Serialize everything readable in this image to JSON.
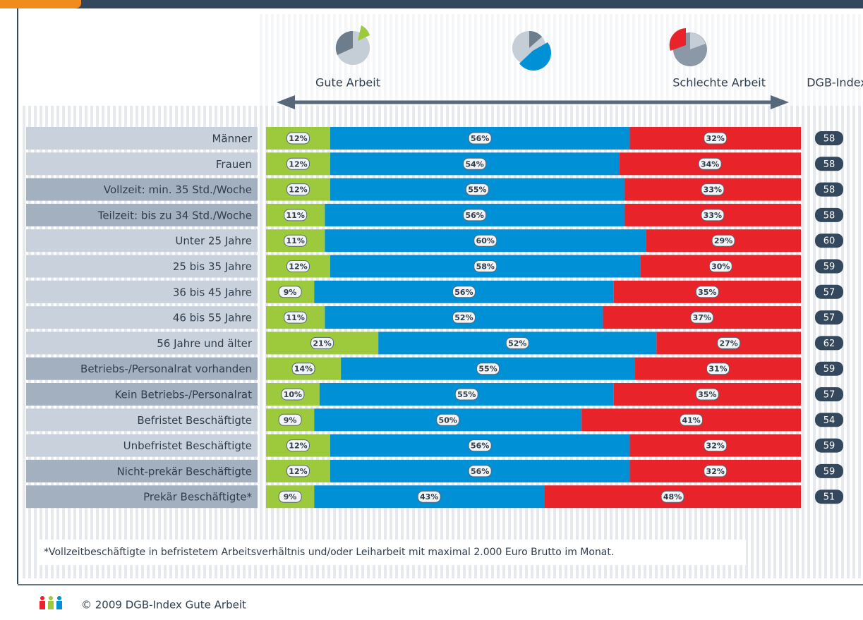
{
  "chart_data": {
    "type": "stacked-bar-horizontal",
    "categories": [
      "Männer",
      "Frauen",
      "Vollzeit: min. 35 Std./Woche",
      "Teilzeit: bis zu 34 Std./Woche",
      "Unter 25 Jahre",
      "25 bis 35 Jahre",
      "36 bis 45 Jahre",
      "46 bis 55 Jahre",
      "56 Jahre und älter",
      "Betriebs-/Personalrat vorhanden",
      "Kein Betriebs-/Personalrat",
      "Befristet Beschäftigte",
      "Unbefristet Beschäftigte",
      "Nicht-prekär Beschäftigte",
      "Prekär Beschäftigte*"
    ],
    "series": [
      {
        "name": "Gute Arbeit",
        "color": "#9dc93c",
        "values": [
          12,
          12,
          12,
          11,
          11,
          12,
          9,
          11,
          21,
          14,
          10,
          9,
          12,
          12,
          9
        ],
        "value_labels": [
          "12%",
          "12%",
          "12%",
          "11%",
          "11%",
          "12%",
          "9%",
          "11%",
          "21%",
          "14%",
          "10%",
          "9%",
          "12%",
          "12%",
          "9%"
        ]
      },
      {
        "color": "#0090d6",
        "values": [
          56,
          54,
          55,
          56,
          60,
          58,
          56,
          52,
          52,
          55,
          55,
          50,
          56,
          56,
          43
        ],
        "value_labels": [
          "56%",
          "54%",
          "55%",
          "56%",
          "60%",
          "58%",
          "56%",
          "52%",
          "52%",
          "55%",
          "55%",
          "50%",
          "56%",
          "56%",
          "43%"
        ]
      },
      {
        "name": "Schlechte Arbeit",
        "color": "#e8232a",
        "values": [
          32,
          34,
          33,
          33,
          29,
          30,
          35,
          37,
          27,
          31,
          35,
          41,
          32,
          32,
          48
        ],
        "value_labels": [
          "32%",
          "34%",
          "33%",
          "33%",
          "29%",
          "30%",
          "35%",
          "37%",
          "27%",
          "31%",
          "35%",
          "41%",
          "32%",
          "32%",
          "48%"
        ]
      }
    ],
    "index": {
      "name": "DGB-Index",
      "values": [
        58,
        58,
        58,
        58,
        60,
        59,
        57,
        57,
        62,
        59,
        57,
        54,
        59,
        59,
        51
      ]
    },
    "xlim": [
      0,
      100
    ],
    "footnote": "*Vollzeitbeschäftigte in befristetem Arbeitsverhältnis und/oder Leiharbeit mit maximal 2.000 Euro Brutto im Monat.",
    "source": "© 2009 DGB-Index Gute Arbeit"
  }
}
